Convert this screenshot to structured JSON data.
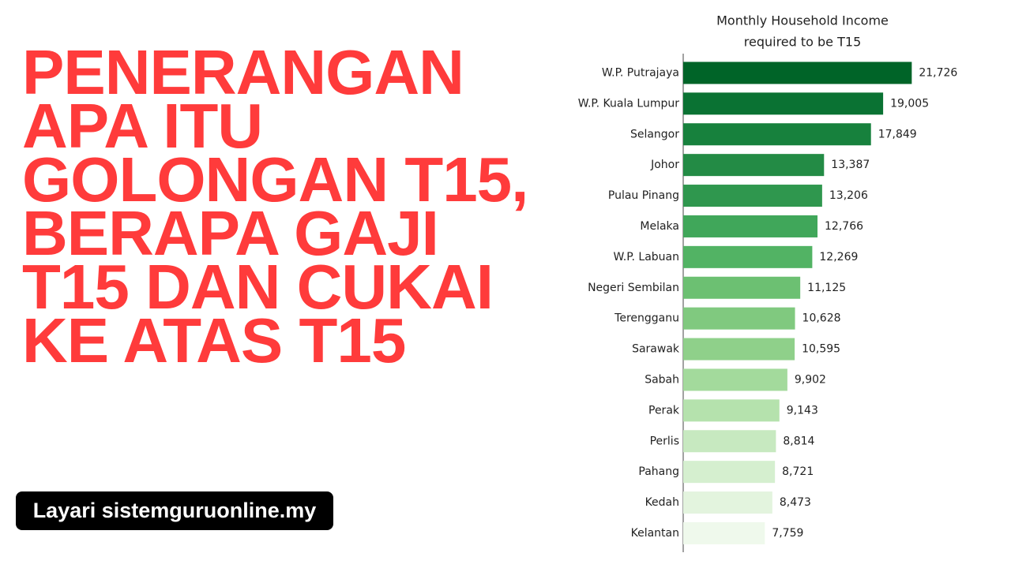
{
  "headline": [
    "PENERANGAN",
    "APA ITU",
    "GOLONGAN T15,",
    "BERAPA GAJI",
    "T15 DAN CUKAI",
    "KE ATAS T15"
  ],
  "badge": "Layari sistemguruonline.my",
  "chart_data": {
    "type": "barh",
    "title": [
      "Monthly Household Income",
      "required to be T15"
    ],
    "categories": [
      "W.P. Putrajaya",
      "W.P. Kuala Lumpur",
      "Selangor",
      "Johor",
      "Pulau Pinang",
      "Melaka",
      "W.P. Labuan",
      "Negeri Sembilan",
      "Terengganu",
      "Sarawak",
      "Sabah",
      "Perak",
      "Perlis",
      "Pahang",
      "Kedah",
      "Kelantan"
    ],
    "values": [
      21726,
      19005,
      17849,
      13387,
      13206,
      12766,
      12269,
      11125,
      10628,
      10595,
      9902,
      9143,
      8814,
      8721,
      8473,
      7759
    ],
    "value_labels": [
      "21,726",
      "19,005",
      "17,849",
      "13,387",
      "13,206",
      "12,766",
      "12,269",
      "11,125",
      "10,628",
      "10,595",
      "9,902",
      "9,143",
      "8,814",
      "8,721",
      "8,473",
      "7,759"
    ],
    "colors": [
      "#006428",
      "#0a7233",
      "#17813d",
      "#238b45",
      "#2f974e",
      "#40a75a",
      "#52b364",
      "#6cc072",
      "#80c97f",
      "#8fd08a",
      "#a3da9c",
      "#b5e2ad",
      "#c7e9c0",
      "#d5efcf",
      "#e3f4de",
      "#eff9ec"
    ],
    "xlim": [
      0,
      22000
    ]
  }
}
